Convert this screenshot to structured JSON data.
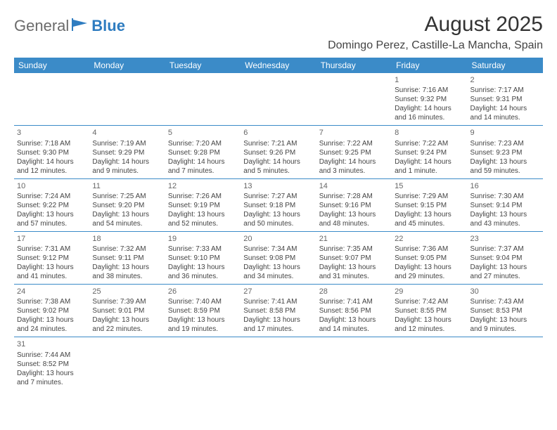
{
  "logo": {
    "part1": "General",
    "part2": "Blue"
  },
  "title": "August 2025",
  "location": "Domingo Perez, Castille-La Mancha, Spain",
  "weekdays": [
    "Sunday",
    "Monday",
    "Tuesday",
    "Wednesday",
    "Thursday",
    "Friday",
    "Saturday"
  ],
  "colors": {
    "header_bg": "#3b8bc8",
    "header_text": "#ffffff",
    "logo_grey": "#6b6b6b",
    "logo_blue": "#2e7cc0",
    "border": "#3b8bc8",
    "text": "#444444"
  },
  "weeks": [
    [
      null,
      null,
      null,
      null,
      null,
      {
        "day": "1",
        "sunrise": "Sunrise: 7:16 AM",
        "sunset": "Sunset: 9:32 PM",
        "daylight1": "Daylight: 14 hours",
        "daylight2": "and 16 minutes."
      },
      {
        "day": "2",
        "sunrise": "Sunrise: 7:17 AM",
        "sunset": "Sunset: 9:31 PM",
        "daylight1": "Daylight: 14 hours",
        "daylight2": "and 14 minutes."
      }
    ],
    [
      {
        "day": "3",
        "sunrise": "Sunrise: 7:18 AM",
        "sunset": "Sunset: 9:30 PM",
        "daylight1": "Daylight: 14 hours",
        "daylight2": "and 12 minutes."
      },
      {
        "day": "4",
        "sunrise": "Sunrise: 7:19 AM",
        "sunset": "Sunset: 9:29 PM",
        "daylight1": "Daylight: 14 hours",
        "daylight2": "and 9 minutes."
      },
      {
        "day": "5",
        "sunrise": "Sunrise: 7:20 AM",
        "sunset": "Sunset: 9:28 PM",
        "daylight1": "Daylight: 14 hours",
        "daylight2": "and 7 minutes."
      },
      {
        "day": "6",
        "sunrise": "Sunrise: 7:21 AM",
        "sunset": "Sunset: 9:26 PM",
        "daylight1": "Daylight: 14 hours",
        "daylight2": "and 5 minutes."
      },
      {
        "day": "7",
        "sunrise": "Sunrise: 7:22 AM",
        "sunset": "Sunset: 9:25 PM",
        "daylight1": "Daylight: 14 hours",
        "daylight2": "and 3 minutes."
      },
      {
        "day": "8",
        "sunrise": "Sunrise: 7:22 AM",
        "sunset": "Sunset: 9:24 PM",
        "daylight1": "Daylight: 14 hours",
        "daylight2": "and 1 minute."
      },
      {
        "day": "9",
        "sunrise": "Sunrise: 7:23 AM",
        "sunset": "Sunset: 9:23 PM",
        "daylight1": "Daylight: 13 hours",
        "daylight2": "and 59 minutes."
      }
    ],
    [
      {
        "day": "10",
        "sunrise": "Sunrise: 7:24 AM",
        "sunset": "Sunset: 9:22 PM",
        "daylight1": "Daylight: 13 hours",
        "daylight2": "and 57 minutes."
      },
      {
        "day": "11",
        "sunrise": "Sunrise: 7:25 AM",
        "sunset": "Sunset: 9:20 PM",
        "daylight1": "Daylight: 13 hours",
        "daylight2": "and 54 minutes."
      },
      {
        "day": "12",
        "sunrise": "Sunrise: 7:26 AM",
        "sunset": "Sunset: 9:19 PM",
        "daylight1": "Daylight: 13 hours",
        "daylight2": "and 52 minutes."
      },
      {
        "day": "13",
        "sunrise": "Sunrise: 7:27 AM",
        "sunset": "Sunset: 9:18 PM",
        "daylight1": "Daylight: 13 hours",
        "daylight2": "and 50 minutes."
      },
      {
        "day": "14",
        "sunrise": "Sunrise: 7:28 AM",
        "sunset": "Sunset: 9:16 PM",
        "daylight1": "Daylight: 13 hours",
        "daylight2": "and 48 minutes."
      },
      {
        "day": "15",
        "sunrise": "Sunrise: 7:29 AM",
        "sunset": "Sunset: 9:15 PM",
        "daylight1": "Daylight: 13 hours",
        "daylight2": "and 45 minutes."
      },
      {
        "day": "16",
        "sunrise": "Sunrise: 7:30 AM",
        "sunset": "Sunset: 9:14 PM",
        "daylight1": "Daylight: 13 hours",
        "daylight2": "and 43 minutes."
      }
    ],
    [
      {
        "day": "17",
        "sunrise": "Sunrise: 7:31 AM",
        "sunset": "Sunset: 9:12 PM",
        "daylight1": "Daylight: 13 hours",
        "daylight2": "and 41 minutes."
      },
      {
        "day": "18",
        "sunrise": "Sunrise: 7:32 AM",
        "sunset": "Sunset: 9:11 PM",
        "daylight1": "Daylight: 13 hours",
        "daylight2": "and 38 minutes."
      },
      {
        "day": "19",
        "sunrise": "Sunrise: 7:33 AM",
        "sunset": "Sunset: 9:10 PM",
        "daylight1": "Daylight: 13 hours",
        "daylight2": "and 36 minutes."
      },
      {
        "day": "20",
        "sunrise": "Sunrise: 7:34 AM",
        "sunset": "Sunset: 9:08 PM",
        "daylight1": "Daylight: 13 hours",
        "daylight2": "and 34 minutes."
      },
      {
        "day": "21",
        "sunrise": "Sunrise: 7:35 AM",
        "sunset": "Sunset: 9:07 PM",
        "daylight1": "Daylight: 13 hours",
        "daylight2": "and 31 minutes."
      },
      {
        "day": "22",
        "sunrise": "Sunrise: 7:36 AM",
        "sunset": "Sunset: 9:05 PM",
        "daylight1": "Daylight: 13 hours",
        "daylight2": "and 29 minutes."
      },
      {
        "day": "23",
        "sunrise": "Sunrise: 7:37 AM",
        "sunset": "Sunset: 9:04 PM",
        "daylight1": "Daylight: 13 hours",
        "daylight2": "and 27 minutes."
      }
    ],
    [
      {
        "day": "24",
        "sunrise": "Sunrise: 7:38 AM",
        "sunset": "Sunset: 9:02 PM",
        "daylight1": "Daylight: 13 hours",
        "daylight2": "and 24 minutes."
      },
      {
        "day": "25",
        "sunrise": "Sunrise: 7:39 AM",
        "sunset": "Sunset: 9:01 PM",
        "daylight1": "Daylight: 13 hours",
        "daylight2": "and 22 minutes."
      },
      {
        "day": "26",
        "sunrise": "Sunrise: 7:40 AM",
        "sunset": "Sunset: 8:59 PM",
        "daylight1": "Daylight: 13 hours",
        "daylight2": "and 19 minutes."
      },
      {
        "day": "27",
        "sunrise": "Sunrise: 7:41 AM",
        "sunset": "Sunset: 8:58 PM",
        "daylight1": "Daylight: 13 hours",
        "daylight2": "and 17 minutes."
      },
      {
        "day": "28",
        "sunrise": "Sunrise: 7:41 AM",
        "sunset": "Sunset: 8:56 PM",
        "daylight1": "Daylight: 13 hours",
        "daylight2": "and 14 minutes."
      },
      {
        "day": "29",
        "sunrise": "Sunrise: 7:42 AM",
        "sunset": "Sunset: 8:55 PM",
        "daylight1": "Daylight: 13 hours",
        "daylight2": "and 12 minutes."
      },
      {
        "day": "30",
        "sunrise": "Sunrise: 7:43 AM",
        "sunset": "Sunset: 8:53 PM",
        "daylight1": "Daylight: 13 hours",
        "daylight2": "and 9 minutes."
      }
    ],
    [
      {
        "day": "31",
        "sunrise": "Sunrise: 7:44 AM",
        "sunset": "Sunset: 8:52 PM",
        "daylight1": "Daylight: 13 hours",
        "daylight2": "and 7 minutes."
      },
      null,
      null,
      null,
      null,
      null,
      null
    ]
  ]
}
